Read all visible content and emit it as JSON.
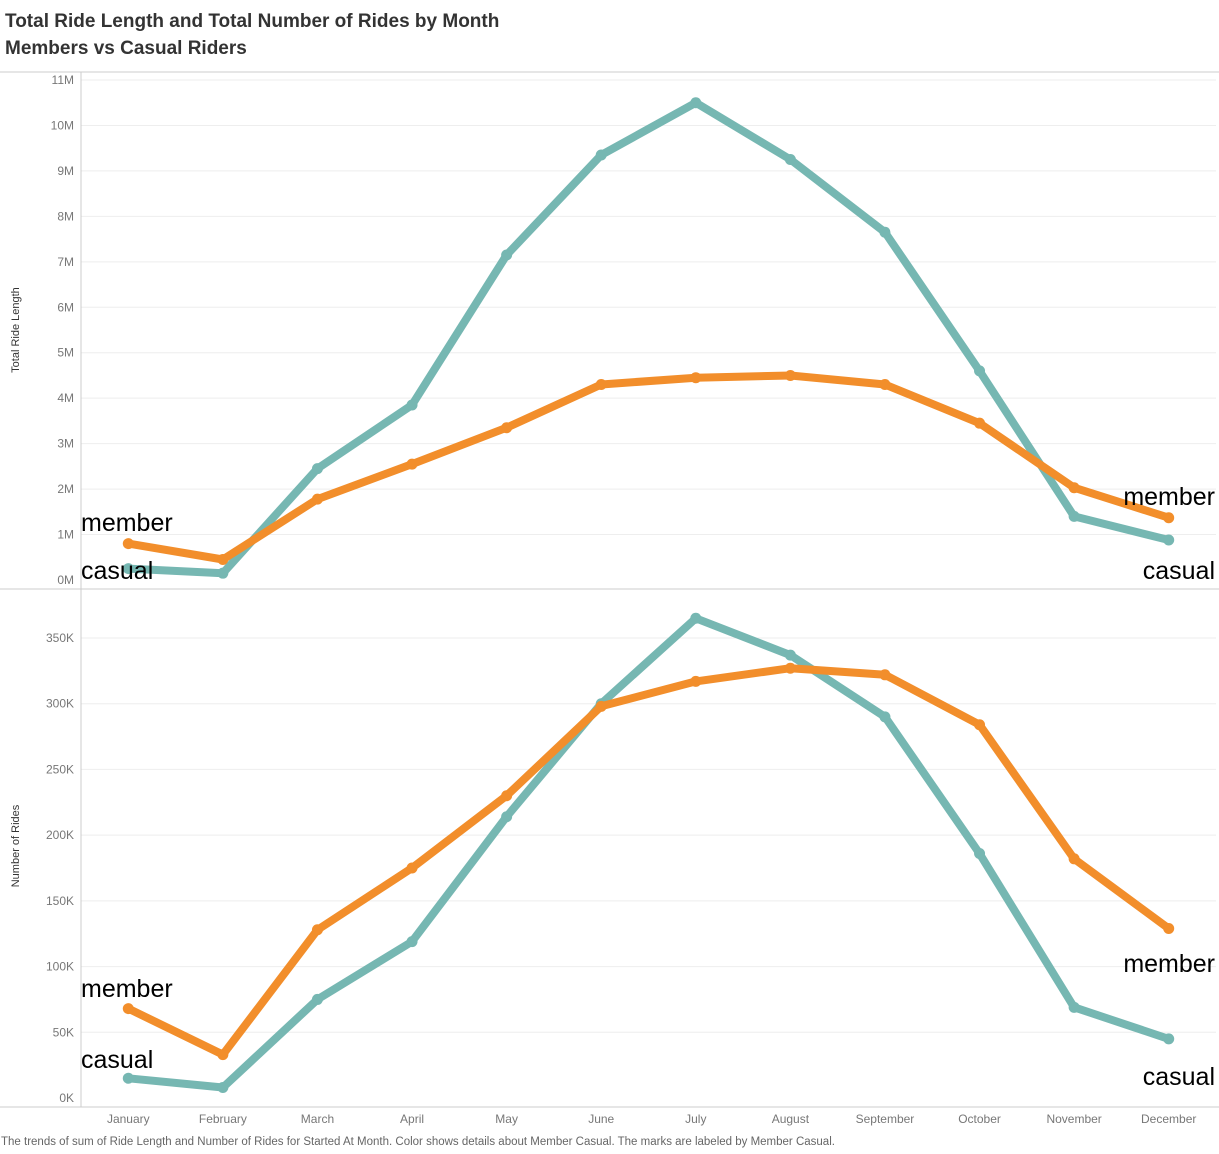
{
  "title_line1": "Total Ride Length and Total Number of Rides by Month",
  "title_line2": "Members vs Casual Riders",
  "caption": "The trends of sum of Ride Length and Number of Rides for Started At Month.  Color shows details about Member Casual.  The marks are labeled by Member Casual.",
  "colors": {
    "member": "#F28E2B",
    "casual": "#76B7B2",
    "grid": "#EEEEEE",
    "axis": "#CCCCCC"
  },
  "chart_data": [
    {
      "type": "line",
      "ylabel": "Total Ride Length",
      "xlabel": "",
      "ylim": [
        0,
        11000000
      ],
      "yticks": [
        0,
        1000000,
        2000000,
        3000000,
        4000000,
        5000000,
        6000000,
        7000000,
        8000000,
        9000000,
        10000000,
        11000000
      ],
      "ytick_labels": [
        "0M",
        "1M",
        "2M",
        "3M",
        "4M",
        "5M",
        "6M",
        "7M",
        "8M",
        "9M",
        "10M",
        "11M"
      ],
      "categories": [
        "January",
        "February",
        "March",
        "April",
        "May",
        "June",
        "July",
        "August",
        "September",
        "October",
        "November",
        "December"
      ],
      "series": [
        {
          "name": "member",
          "values": [
            800000,
            450000,
            1780000,
            2550000,
            3350000,
            4300000,
            4450000,
            4500000,
            4300000,
            3450000,
            2030000,
            1370000
          ]
        },
        {
          "name": "casual",
          "values": [
            250000,
            150000,
            2450000,
            3850000,
            7150000,
            9350000,
            10500000,
            9250000,
            7650000,
            4600000,
            1400000,
            880000
          ]
        }
      ]
    },
    {
      "type": "line",
      "ylabel": "Number of Rides",
      "xlabel": "",
      "ylim": [
        0,
        380000
      ],
      "yticks": [
        0,
        50000,
        100000,
        150000,
        200000,
        250000,
        300000,
        350000
      ],
      "ytick_labels": [
        "0K",
        "50K",
        "100K",
        "150K",
        "200K",
        "250K",
        "300K",
        "350K"
      ],
      "categories": [
        "January",
        "February",
        "March",
        "April",
        "May",
        "June",
        "July",
        "August",
        "September",
        "October",
        "November",
        "December"
      ],
      "series": [
        {
          "name": "member",
          "values": [
            68000,
            33000,
            128000,
            175000,
            230000,
            298000,
            317000,
            327000,
            322000,
            284000,
            182000,
            129000
          ]
        },
        {
          "name": "casual",
          "values": [
            15000,
            8000,
            75000,
            119000,
            214000,
            300000,
            365000,
            337000,
            290000,
            186000,
            69000,
            45000
          ]
        }
      ]
    }
  ]
}
